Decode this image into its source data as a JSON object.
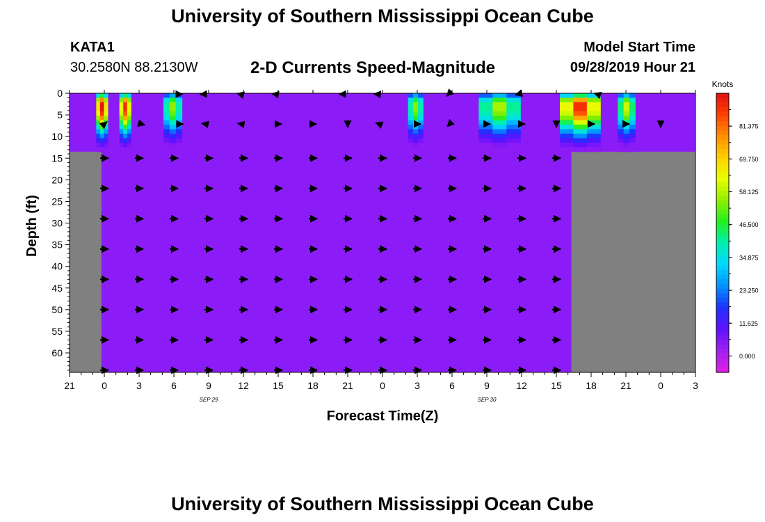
{
  "header": {
    "title_top": "University of Southern Mississippi Ocean Cube",
    "title_bottom": "University of Southern Mississippi Ocean Cube",
    "station_id": "KATA1",
    "station_coords": "30.2580N 88.2130W",
    "plot_title": "2-D Currents Speed-Magnitude",
    "model_start_label": "Model Start Time",
    "model_start_value": "09/28/2019 Hour 21"
  },
  "chart_data": {
    "type": "heatmap",
    "title": "2-D Currents Speed-Magnitude",
    "xlabel": "Forecast Time(Z)",
    "ylabel": "Depth (ft)",
    "x_ticks": [
      "21",
      "0",
      "3",
      "6",
      "9",
      "12",
      "15",
      "18",
      "21",
      "0",
      "3",
      "6",
      "9",
      "12",
      "15",
      "18",
      "21",
      "0",
      "3"
    ],
    "x_tick_hours": [
      0,
      3,
      6,
      9,
      12,
      15,
      18,
      21,
      24,
      27,
      30,
      33,
      36,
      39,
      42,
      45,
      48,
      51,
      54
    ],
    "date_labels": [
      {
        "text": "SEP 29",
        "hour": 12
      },
      {
        "text": "SEP 30",
        "hour": 36
      }
    ],
    "xlim_hours": [
      0,
      54
    ],
    "y_ticks": [
      0,
      5,
      10,
      15,
      20,
      25,
      30,
      35,
      40,
      45,
      50,
      55,
      60
    ],
    "ylim": [
      0,
      64.5
    ],
    "colorbar": {
      "label": "Knots",
      "ticks": [
        "81.375",
        "69.750",
        "58.125",
        "46.500",
        "34.875",
        "23.250",
        "11.625",
        "0.000"
      ],
      "tick_values": [
        81.375,
        69.75,
        58.125,
        46.5,
        34.875,
        23.25,
        11.625,
        0
      ],
      "range": [
        -5.8,
        93
      ],
      "colors": [
        "#e020e0",
        "#a020f0",
        "#6010ff",
        "#2030ff",
        "#0090ff",
        "#00d8ff",
        "#00f0b0",
        "#20f020",
        "#90ee00",
        "#e8ff00",
        "#ffd000",
        "#ff9000",
        "#ff4000",
        "#e01010"
      ]
    },
    "background_speed": 4,
    "background_color": "#8c1cf7",
    "land_mask": [
      {
        "hour_start": 0,
        "hour_end": 2.75,
        "depth_start": 13.5,
        "depth_end": 64.5
      },
      {
        "hour_start": 43.3,
        "hour_end": 54,
        "depth_start": 13.5,
        "depth_end": 64.5
      }
    ],
    "surface_depth_limit": 13.5,
    "events": [
      {
        "hour_start": 2.3,
        "hour_end": 3.3,
        "peak": 92
      },
      {
        "hour_start": 4.3,
        "hour_end": 5.3,
        "peak": 88
      },
      {
        "hour_start": 8.1,
        "hour_end": 9.7,
        "peak": 55
      },
      {
        "hour_start": 29.2,
        "hour_end": 30.5,
        "peak": 55
      },
      {
        "hour_start": 35.3,
        "hour_end": 38.9,
        "peak": 57
      },
      {
        "hour_start": 42.3,
        "hour_end": 45.8,
        "peak": 88
      },
      {
        "hour_start": 47.3,
        "hour_end": 48.8,
        "peak": 60
      }
    ],
    "vector_rows_depth": [
      8,
      15,
      22,
      29,
      36,
      43,
      50,
      57,
      64
    ],
    "vector_cols_hours": [
      3,
      6,
      9,
      12,
      15,
      18,
      21,
      24,
      27,
      30,
      33,
      36,
      39,
      42
    ],
    "surface_vectors": [
      {
        "hour": 9.5,
        "angle": 0
      },
      {
        "hour": 11.5,
        "angle": 180
      },
      {
        "hour": 14.7,
        "angle": 195
      },
      {
        "hour": 17.7,
        "angle": 190
      },
      {
        "hour": 23.5,
        "angle": 180
      },
      {
        "hour": 26.5,
        "angle": 185
      },
      {
        "hour": 32.7,
        "angle": 135
      },
      {
        "hour": 38.7,
        "angle": 165
      },
      {
        "hour": 45.5,
        "angle": 200
      }
    ],
    "vectors_5ft": [
      {
        "hour": 3,
        "angle": -40
      },
      {
        "hour": 6.2,
        "angle": 15
      },
      {
        "hour": 9.5,
        "angle": 0
      },
      {
        "hour": 11.7,
        "angle": 190
      },
      {
        "hour": 14.8,
        "angle": 190
      },
      {
        "hour": 18,
        "angle": 0
      },
      {
        "hour": 21,
        "angle": 0
      },
      {
        "hour": 24,
        "angle": 90
      },
      {
        "hour": 26.7,
        "angle": 200
      },
      {
        "hour": 30,
        "angle": 0
      },
      {
        "hour": 32.8,
        "angle": 135
      },
      {
        "hour": 36,
        "angle": 0
      },
      {
        "hour": 39,
        "angle": 0
      },
      {
        "hour": 42,
        "angle": 90
      },
      {
        "hour": 45,
        "angle": 0
      },
      {
        "hour": 48,
        "angle": 0
      },
      {
        "hour": 51,
        "angle": 90
      }
    ]
  }
}
